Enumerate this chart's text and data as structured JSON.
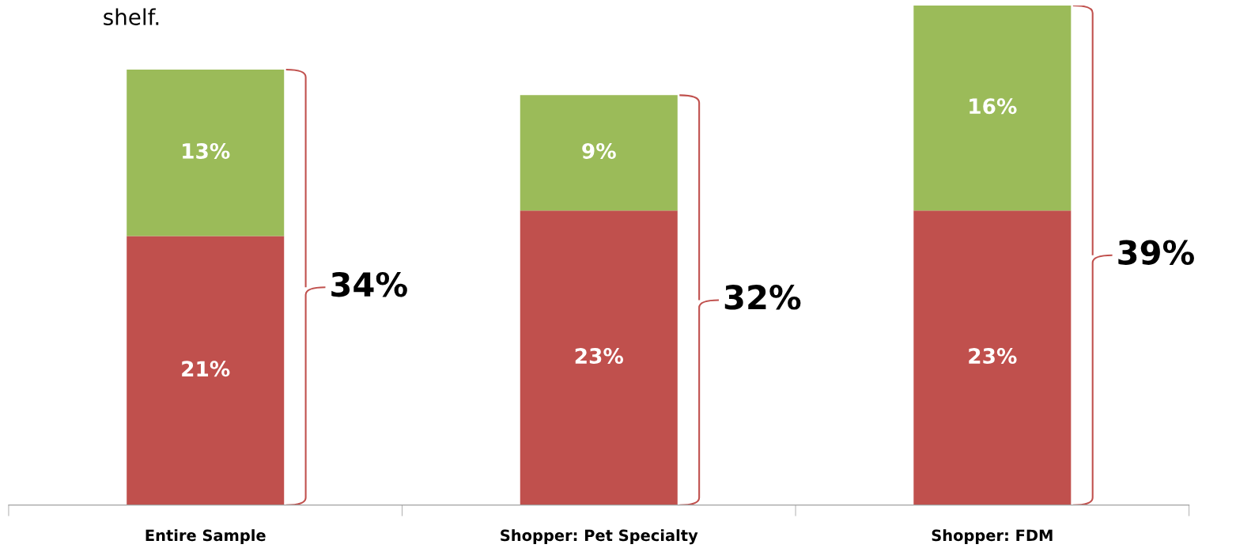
{
  "chart_data": {
    "type": "bar",
    "stacked": true,
    "categories": [
      "Entire Sample",
      "Shopper: Pet Specialty",
      "Shopper: FDM"
    ],
    "series": [
      {
        "color": "#c0504d",
        "values": [
          21,
          23,
          23
        ],
        "value_labels": [
          "21%",
          "23%",
          "23%"
        ]
      },
      {
        "color": "#9bbb59",
        "values": [
          13,
          9,
          16
        ],
        "value_labels": [
          "13%",
          "9%",
          "16%"
        ]
      }
    ],
    "totals": [
      "34%",
      "32%",
      "39%"
    ],
    "tick_labels": "x",
    "grid": false,
    "legend": false,
    "annotations": [
      "shelf."
    ]
  }
}
